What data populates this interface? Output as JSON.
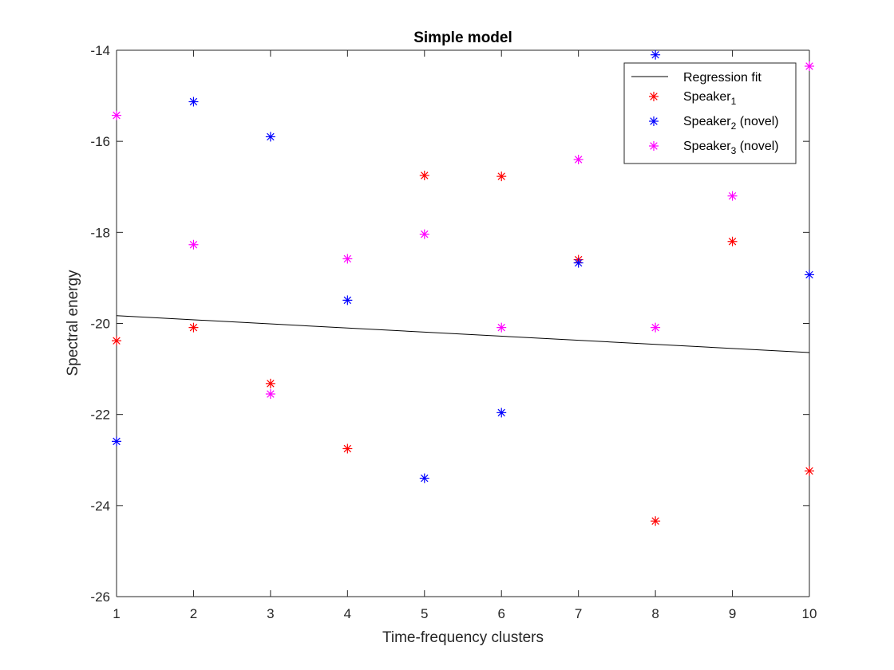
{
  "chart_data": {
    "type": "scatter",
    "title": "Simple model",
    "xlabel": "Time-frequency clusters",
    "ylabel": "Spectral energy",
    "xlim": [
      1,
      10
    ],
    "ylim": [
      -26,
      -14
    ],
    "xticks": [
      "1",
      "2",
      "3",
      "4",
      "5",
      "6",
      "7",
      "8",
      "9",
      "10"
    ],
    "yticks": [
      "-26",
      "-24",
      "-22",
      "-20",
      "-18",
      "-16",
      "-14"
    ],
    "grid": false,
    "legend_position": "top-right",
    "fit_line": {
      "name": "Regression fit",
      "color": "#000000",
      "x": [
        1,
        10
      ],
      "y": [
        -19.83,
        -20.64
      ]
    },
    "series": [
      {
        "name": "Speaker",
        "subscript": "1",
        "suffix": "",
        "color": "#ff0000",
        "x": [
          1,
          2,
          3,
          4,
          5,
          6,
          7,
          8,
          9,
          10
        ],
        "y": [
          -20.38,
          -20.09,
          -21.32,
          -22.75,
          -16.75,
          -16.77,
          -18.6,
          -24.34,
          -18.2,
          -23.24
        ]
      },
      {
        "name": "Speaker",
        "subscript": "2",
        "suffix": " (novel)",
        "color": "#0000ff",
        "x": [
          1,
          2,
          3,
          4,
          5,
          6,
          7,
          8,
          10
        ],
        "y": [
          -22.59,
          -15.13,
          -15.9,
          -19.49,
          -23.4,
          -21.96,
          -18.67,
          -14.1,
          -18.93
        ]
      },
      {
        "name": "Speaker",
        "subscript": "3",
        "suffix": " (novel)",
        "color": "#ff00ff",
        "x": [
          1,
          2,
          3,
          4,
          5,
          6,
          7,
          8,
          9,
          10
        ],
        "y": [
          -15.43,
          -18.27,
          -21.55,
          -18.58,
          -18.04,
          -20.09,
          -16.4,
          -20.09,
          -17.2,
          -14.35
        ]
      }
    ]
  }
}
